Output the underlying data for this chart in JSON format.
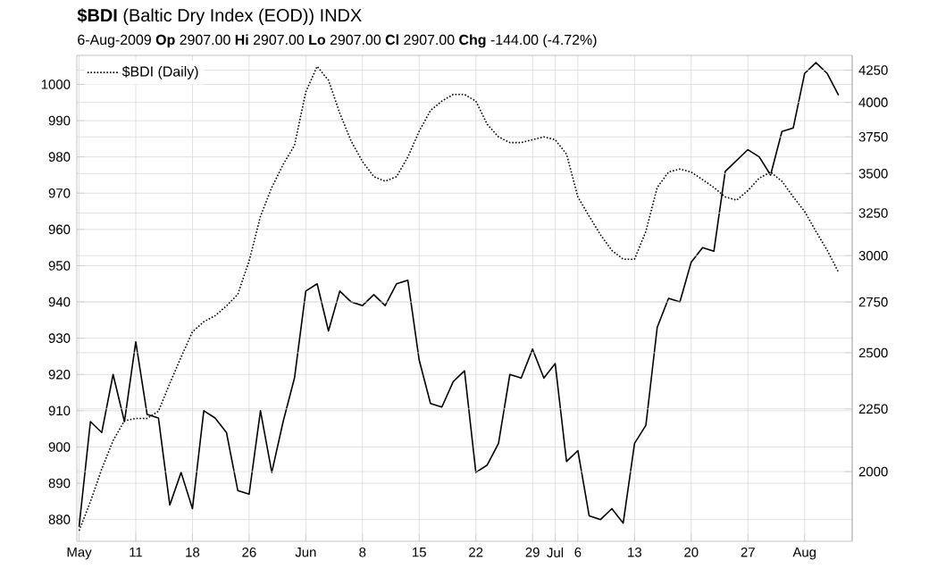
{
  "chart_data": {
    "type": "line",
    "title": "**$BDI** (Baltic Dry Index (EOD)) INDX",
    "subtitle": "6-Aug-2009 **Op** 2907.00 **Hi** 2907.00 **Lo** 2907.00 **Cl** 2907.00 **Chg** -144.00 (-4.72%)",
    "categories": [
      "May",
      null,
      null,
      null,
      null,
      "11",
      null,
      null,
      null,
      null,
      "18",
      null,
      null,
      null,
      null,
      "26",
      null,
      null,
      null,
      null,
      "Jun",
      null,
      null,
      null,
      null,
      "8",
      null,
      null,
      null,
      null,
      "15",
      null,
      null,
      null,
      null,
      "22",
      null,
      null,
      null,
      null,
      "29",
      null,
      "Jul",
      null,
      "6",
      null,
      null,
      null,
      null,
      "13",
      null,
      null,
      null,
      null,
      "20",
      null,
      null,
      null,
      null,
      "27",
      null,
      null,
      null,
      null,
      "Aug",
      null,
      null,
      null
    ],
    "series": [
      {
        "color": "#000000",
        "line_style": "solid",
        "axis": "y",
        "values": [
          878,
          907,
          904,
          920,
          907,
          929,
          909,
          908,
          884,
          893,
          883,
          910,
          908,
          904,
          888,
          887,
          910,
          893,
          907,
          919,
          943,
          945,
          932,
          943,
          940,
          939,
          942,
          939,
          945,
          946,
          924,
          912,
          911,
          918,
          921,
          893,
          895,
          901,
          920,
          919,
          927,
          919,
          923,
          896,
          899,
          881,
          880,
          883,
          879,
          901,
          906,
          933,
          941,
          940,
          951,
          955,
          954,
          976,
          979,
          982,
          980,
          975,
          987,
          988,
          1003,
          1006,
          1003,
          997
        ]
      },
      {
        "name": "$BDI (Daily)",
        "color": "#000000",
        "line_style": "dotted",
        "axis": "y2",
        "values": [
          1790,
          1890,
          2010,
          2120,
          2200,
          2210,
          2210,
          2240,
          2360,
          2480,
          2600,
          2650,
          2680,
          2730,
          2790,
          2970,
          3230,
          3410,
          3560,
          3690,
          4080,
          4280,
          4170,
          3920,
          3720,
          3580,
          3480,
          3450,
          3480,
          3610,
          3790,
          3940,
          4010,
          4060,
          4060,
          4010,
          3840,
          3750,
          3710,
          3710,
          3730,
          3750,
          3730,
          3630,
          3350,
          3230,
          3120,
          3030,
          2980,
          2980,
          3140,
          3410,
          3510,
          3530,
          3510,
          3460,
          3410,
          3350,
          3330,
          3390,
          3470,
          3510,
          3450,
          3350,
          3260,
          3140,
          3030,
          2907
        ]
      }
    ],
    "ylim": [
      874,
      1008
    ],
    "yticks": [
      880,
      890,
      900,
      910,
      920,
      930,
      940,
      950,
      960,
      970,
      980,
      990,
      1000
    ],
    "y2lim": [
      1755,
      4370
    ],
    "y2ticks": [
      2000,
      2250,
      2500,
      2750,
      3000,
      3250,
      3500,
      3750,
      4000,
      4250
    ],
    "log": "y2",
    "grid": true,
    "legend": "top left",
    "marker": "none"
  }
}
